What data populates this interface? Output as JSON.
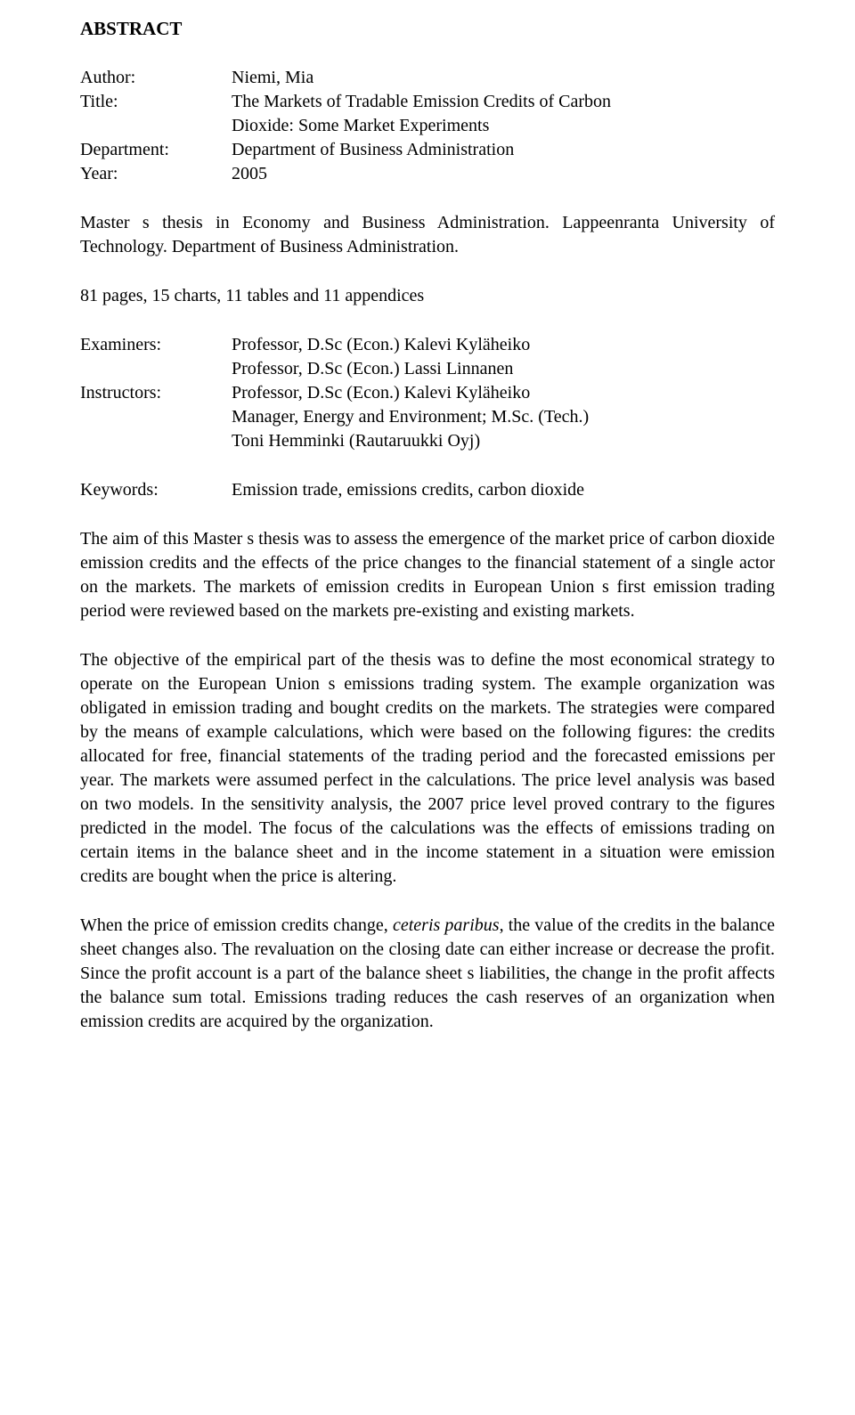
{
  "heading": "ABSTRACT",
  "meta": {
    "author_label": "Author:",
    "author_value": "Niemi, Mia",
    "title_label": "Title:",
    "title_value_line1": "The Markets of Tradable Emission Credits of Carbon",
    "title_value_line2": "Dioxide: Some Market Experiments",
    "department_label": "Department:",
    "department_value": "Department of Business Administration",
    "year_label": "Year:",
    "year_value": "2005"
  },
  "institution": "Master s thesis in Economy and Business Administration. Lappeenranta University of Technology. Department of Business Administration.",
  "pages": "81 pages, 15 charts, 11 tables and 11 appendices",
  "roles": {
    "examiners_label": "Examiners:",
    "examiners_values": [
      "Professor, D.Sc (Econ.) Kalevi Kyläheiko",
      "Professor, D.Sc (Econ.) Lassi Linnanen"
    ],
    "instructors_label": "Instructors:",
    "instructors_values": [
      "Professor, D.Sc (Econ.) Kalevi Kyläheiko",
      "Manager, Energy and Environment; M.Sc. (Tech.)",
      "Toni Hemminki (Rautaruukki Oyj)"
    ]
  },
  "keywords": {
    "label": "Keywords:",
    "value": "Emission trade, emissions credits, carbon dioxide"
  },
  "paragraphs": {
    "p1": "The aim of this Master s thesis was to assess the emergence of the market price of carbon dioxide emission credits and the effects of the price changes to the financial statement of a single actor on the markets. The markets of emission credits in European Union s first emission trading period were reviewed based on the markets pre-existing and existing markets.",
    "p2": "The objective of the empirical part of the thesis was to define the most economical strategy to operate on the European Union s emissions trading system. The example organization was obligated in emission trading and bought credits on the markets. The strategies were compared by the means of example calculations, which were based on the following figures: the credits allocated for free, financial statements of the trading period and the forecasted emissions per year. The markets were assumed perfect in the calculations. The price level analysis was based on two models. In the sensitivity analysis, the 2007 price level proved contrary to the figures predicted in the model. The focus of the calculations was the effects of emissions trading on certain items in the balance sheet and in the income statement in a situation were emission credits are bought when the price is altering.",
    "p3_before_italic": "When the price of emission credits change, ",
    "p3_italic": "ceteris paribus",
    "p3_after_italic": ", the value of the credits in the balance sheet changes also. The revaluation on the closing date can either increase or decrease the profit. Since the profit account is a part of the balance sheet s liabilities, the change in the profit affects the balance sum total. Emissions trading reduces the cash reserves of an organization when emission credits are acquired by the organization."
  }
}
